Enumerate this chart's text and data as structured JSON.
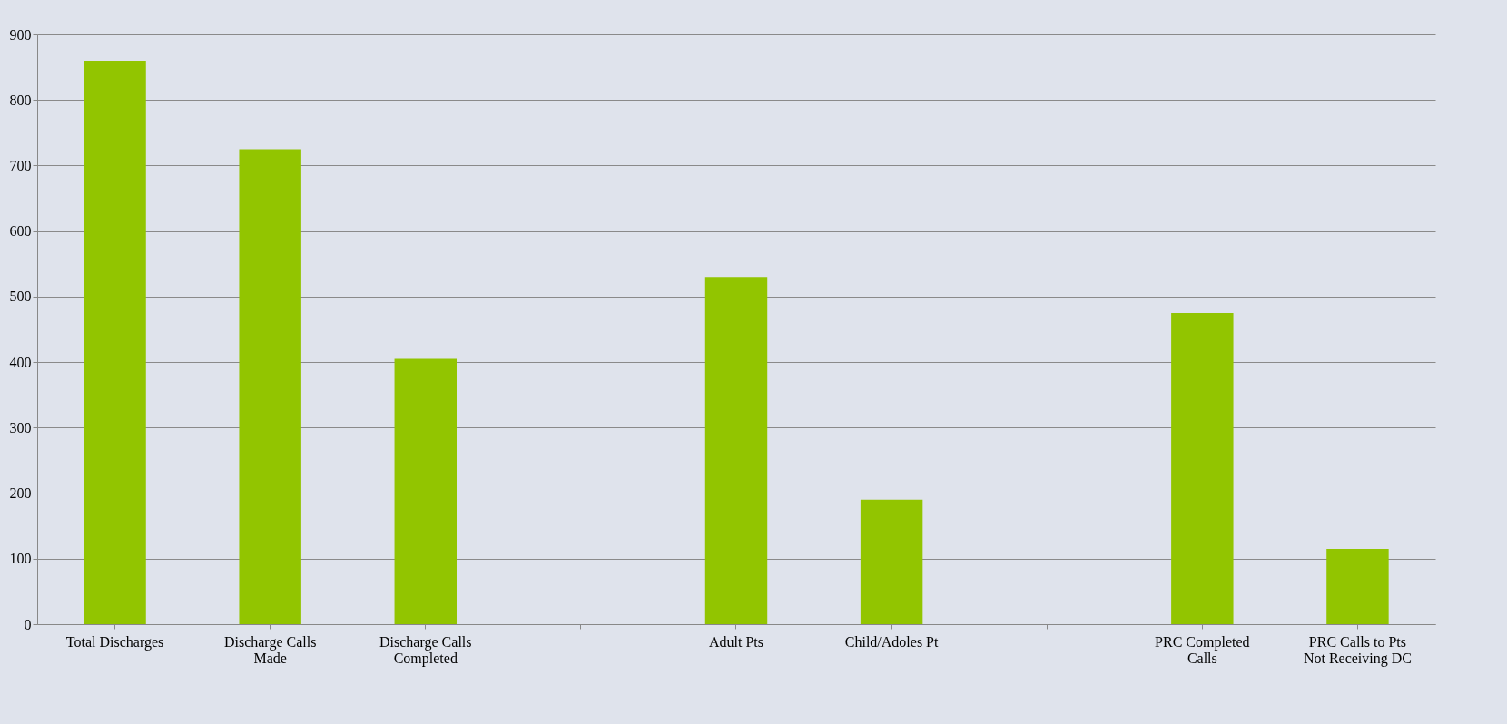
{
  "chart_data": {
    "type": "bar",
    "categories": [
      "Total Discharges",
      "Discharge Calls Made",
      "Discharge Calls Completed",
      null,
      "Adult Pts",
      "Child/Adoles Pt",
      null,
      "PRC Completed Calls",
      "PRC Calls to Pts Not Receiving DC"
    ],
    "values": [
      860,
      725,
      405,
      null,
      530,
      190,
      null,
      475,
      115
    ],
    "color": "#92c500",
    "ylim": [
      0,
      900
    ],
    "yticks": [
      0,
      100,
      200,
      300,
      400,
      500,
      600,
      700,
      800,
      900
    ],
    "grid": "y"
  }
}
